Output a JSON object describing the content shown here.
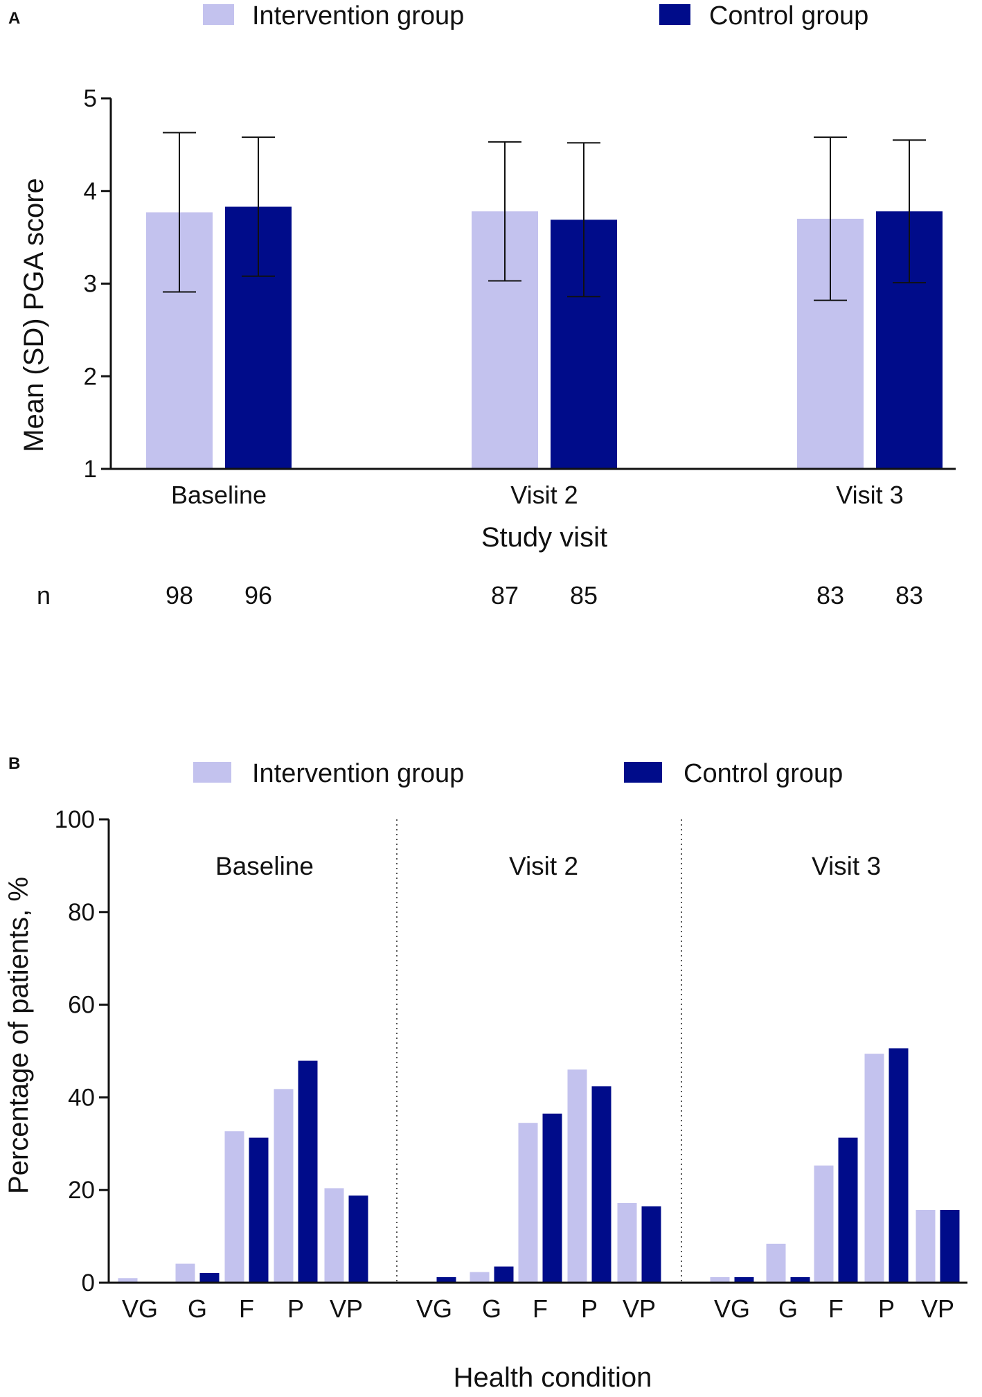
{
  "colors": {
    "intervention": "#c3c2ee",
    "control": "#000c8a",
    "axis": "#111111"
  },
  "chart_data": [
    {
      "panel": "A",
      "type": "bar",
      "legend": [
        "Intervention group",
        "Control group"
      ],
      "categories": [
        "Baseline",
        "Visit 2",
        "Visit 3"
      ],
      "series": [
        {
          "name": "Intervention group",
          "values": [
            3.77,
            3.78,
            3.7
          ],
          "sd": [
            0.86,
            0.75,
            0.88
          ],
          "n": [
            98,
            87,
            83
          ]
        },
        {
          "name": "Control group",
          "values": [
            3.83,
            3.69,
            3.78
          ],
          "sd": [
            0.75,
            0.83,
            0.77
          ],
          "n": [
            96,
            85,
            83
          ]
        }
      ],
      "ylabel": "Mean (SD) PGA score",
      "xlabel": "Study visit",
      "n_label": "n",
      "ylim": [
        1,
        5
      ],
      "yticks": [
        1,
        2,
        3,
        4,
        5
      ]
    },
    {
      "panel": "B",
      "type": "bar",
      "legend": [
        "Intervention group",
        "Control group"
      ],
      "panels": [
        "Baseline",
        "Visit 2",
        "Visit 3"
      ],
      "categories": [
        "VG",
        "G",
        "F",
        "P",
        "VP"
      ],
      "series": [
        {
          "name": "Intervention group",
          "values": [
            [
              1.0,
              4.1,
              32.7,
              41.8,
              20.4
            ],
            [
              0.0,
              2.3,
              34.5,
              46.0,
              17.2
            ],
            [
              1.2,
              8.4,
              25.3,
              49.4,
              15.7
            ]
          ]
        },
        {
          "name": "Control group",
          "values": [
            [
              0.0,
              2.1,
              31.3,
              47.9,
              18.8
            ],
            [
              1.2,
              3.5,
              36.5,
              42.4,
              16.5
            ],
            [
              1.2,
              1.2,
              31.3,
              50.6,
              15.7
            ]
          ]
        }
      ],
      "ylabel": "Percentage of patients, %",
      "xlabel": "Health condition",
      "ylim": [
        0,
        100
      ],
      "yticks": [
        0,
        20,
        40,
        60,
        80,
        100
      ]
    }
  ]
}
